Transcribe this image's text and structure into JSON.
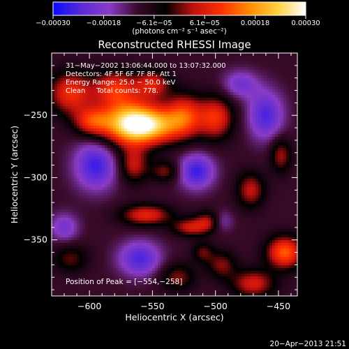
{
  "chart_data": {
    "type": "heatmap",
    "title": "Reconstructed RHESSI Image",
    "xlabel": "Heliocentric X (arcsec)",
    "ylabel": "Heliocentric Y (arcsec)",
    "xlim": [
      -630,
      -435
    ],
    "ylim": [
      -395,
      -200
    ],
    "x_ticks": [
      {
        "value": -600,
        "label": "−600"
      },
      {
        "value": -550,
        "label": "−550"
      },
      {
        "value": -500,
        "label": "−500"
      },
      {
        "value": -450,
        "label": "−450"
      }
    ],
    "y_ticks": [
      {
        "value": -250,
        "label": "−250"
      },
      {
        "value": -300,
        "label": "−300"
      },
      {
        "value": -350,
        "label": "−350"
      }
    ],
    "colorbar": {
      "min": -0.0003,
      "max": 0.0003,
      "units": "(photons cm⁻² s⁻¹ asec⁻²)",
      "tick_labels": [
        "−0.00030",
        "−0.00018",
        "−6.1e−05",
        "6.1e−05",
        "0.00018",
        "0.00030"
      ],
      "colors": [
        "#0a0aff",
        "#5a2ad8",
        "#8a3cc4",
        "#3a0a2a",
        "#000000",
        "#c01010",
        "#ff3000",
        "#ff8c00",
        "#ffd040",
        "#ffffff"
      ]
    },
    "annotation_lines": [
      "31−May−2002 13:06:44.000 to 13:07:32.000",
      "Detectors: 4F 5F 6F 7F 8F, Att 1",
      "Energy Range: 25.0 − 50.0 keV",
      "Clean     Total counts: 778."
    ],
    "peak_label": "Position of Peak = [−554,−258]",
    "peak_position": [
      -554,
      -258
    ],
    "sources": [
      {
        "x": -554,
        "y": -258,
        "sx": 18,
        "sy": 10,
        "amp": 1.0
      },
      {
        "x": -570,
        "y": -255,
        "sx": 16,
        "sy": 14,
        "amp": 0.7
      },
      {
        "x": -525,
        "y": -250,
        "sx": 10,
        "sy": 12,
        "amp": 0.6
      },
      {
        "x": -500,
        "y": -252,
        "sx": 10,
        "sy": 12,
        "amp": 0.6
      },
      {
        "x": -598,
        "y": -255,
        "sx": 10,
        "sy": 8,
        "amp": 0.55
      },
      {
        "x": -615,
        "y": -232,
        "sx": 12,
        "sy": 12,
        "amp": 0.6
      },
      {
        "x": -580,
        "y": -228,
        "sx": 12,
        "sy": 10,
        "amp": 0.55
      },
      {
        "x": -550,
        "y": -225,
        "sx": 10,
        "sy": 8,
        "amp": 0.5
      },
      {
        "x": -565,
        "y": -290,
        "sx": 8,
        "sy": 10,
        "amp": 0.45
      },
      {
        "x": -540,
        "y": -295,
        "sx": 8,
        "sy": 6,
        "amp": 0.35
      },
      {
        "x": -555,
        "y": -330,
        "sx": 14,
        "sy": 6,
        "amp": 0.55
      },
      {
        "x": -520,
        "y": -340,
        "sx": 10,
        "sy": 5,
        "amp": 0.45
      },
      {
        "x": -505,
        "y": -335,
        "sx": 8,
        "sy": 6,
        "amp": 0.4
      },
      {
        "x": -472,
        "y": -310,
        "sx": 8,
        "sy": 10,
        "amp": 0.45
      },
      {
        "x": -448,
        "y": -282,
        "sx": 6,
        "sy": 10,
        "amp": 0.4
      },
      {
        "x": -445,
        "y": -360,
        "sx": 10,
        "sy": 9,
        "amp": 0.75
      },
      {
        "x": -470,
        "y": -385,
        "sx": 12,
        "sy": 8,
        "amp": 0.5
      },
      {
        "x": -495,
        "y": -370,
        "sx": 8,
        "sy": 8,
        "amp": 0.35
      },
      {
        "x": -530,
        "y": -380,
        "sx": 10,
        "sy": 8,
        "amp": 0.35
      },
      {
        "x": -615,
        "y": -365,
        "sx": 10,
        "sy": 8,
        "amp": 0.3
      },
      {
        "x": -510,
        "y": -360,
        "sx": 6,
        "sy": 6,
        "amp": 0.3
      },
      {
        "x": -595,
        "y": -290,
        "sx": 12,
        "sy": 14,
        "amp": -0.55
      },
      {
        "x": -515,
        "y": -295,
        "sx": 10,
        "sy": 10,
        "amp": -0.55
      },
      {
        "x": -460,
        "y": -250,
        "sx": 10,
        "sy": 14,
        "amp": -0.5
      },
      {
        "x": -560,
        "y": -365,
        "sx": 12,
        "sy": 10,
        "amp": -0.5
      },
      {
        "x": -495,
        "y": -335,
        "sx": 6,
        "sy": 6,
        "amp": -0.3
      },
      {
        "x": -620,
        "y": -340,
        "sx": 8,
        "sy": 8,
        "amp": -0.35
      },
      {
        "x": -480,
        "y": -225,
        "sx": 10,
        "sy": 8,
        "amp": -0.35
      }
    ]
  },
  "footer": {
    "timestamp": "20−Apr−2013 21:51"
  }
}
